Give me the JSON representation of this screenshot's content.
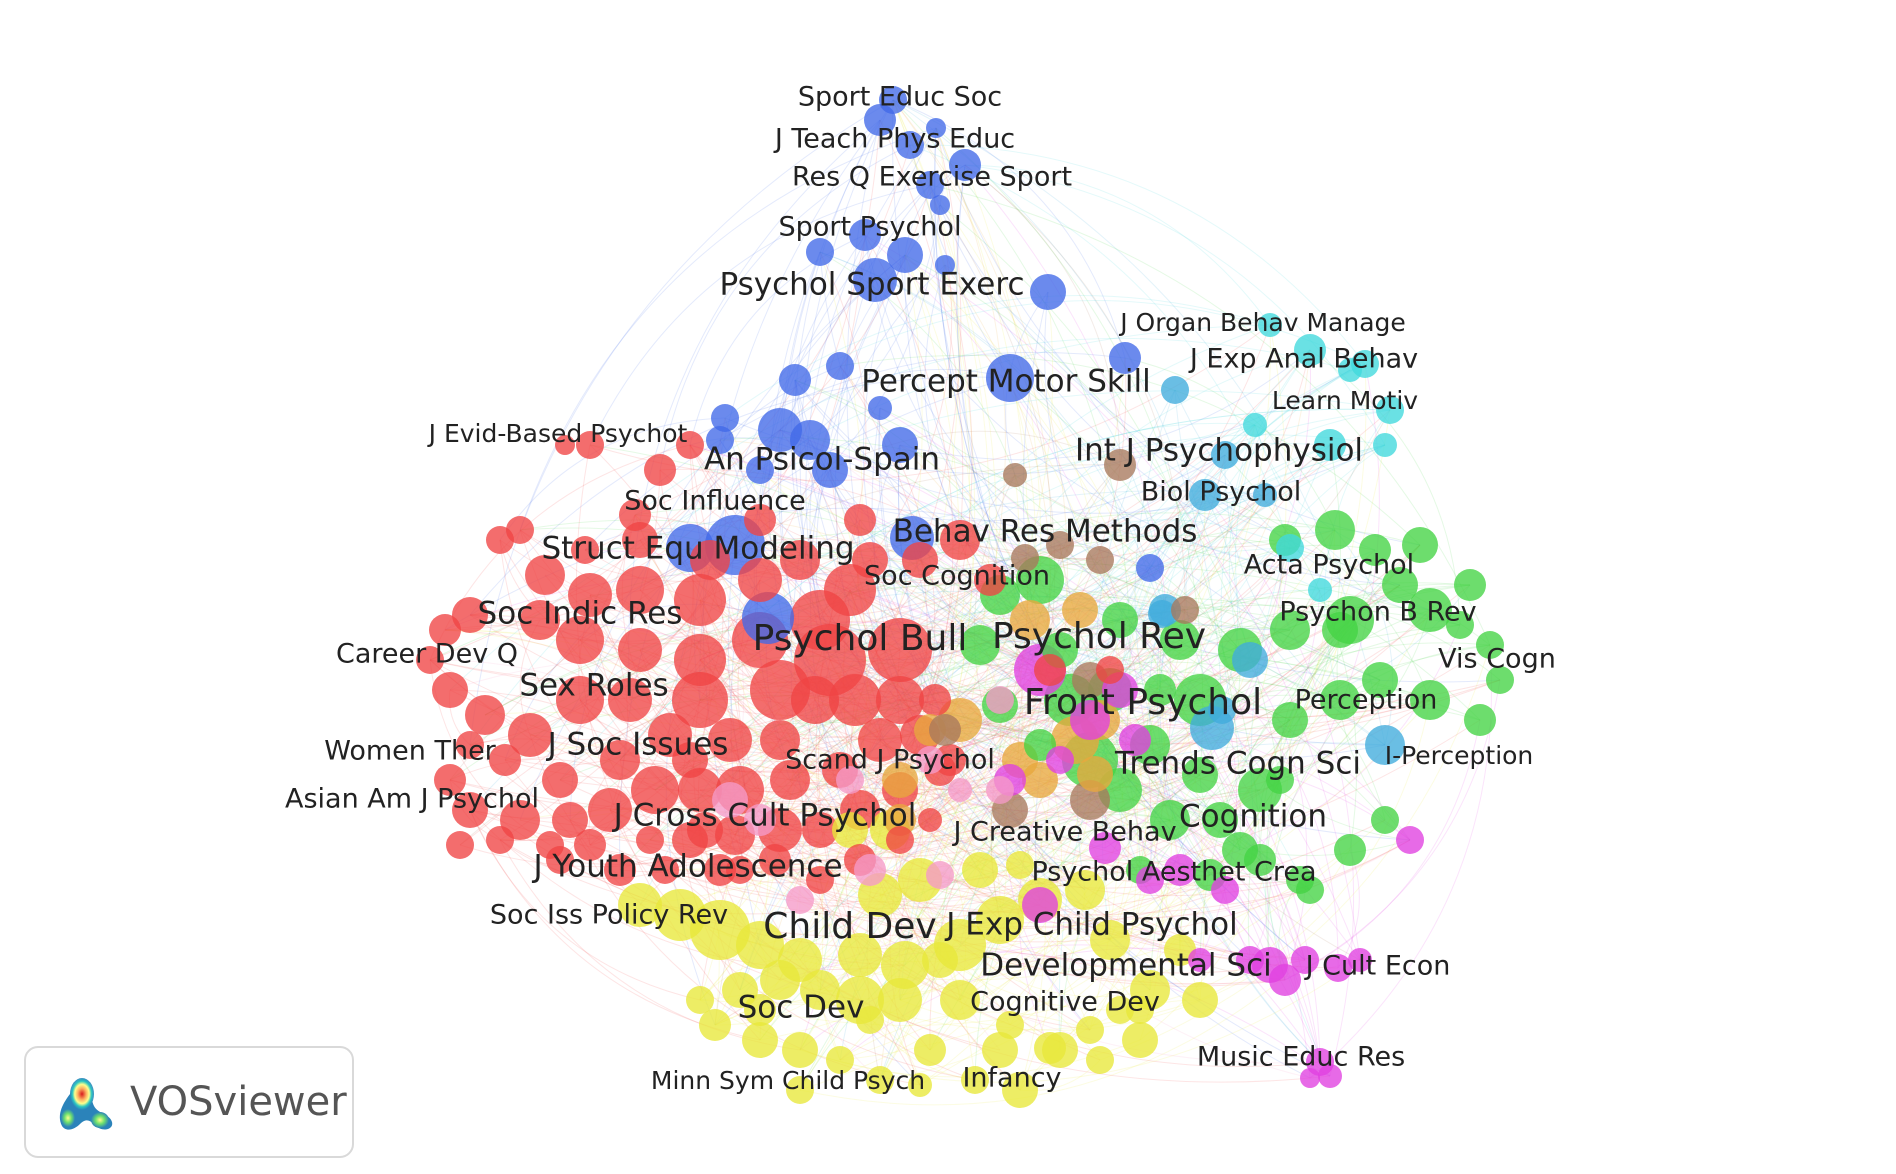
{
  "app": {
    "name": "VOSviewer"
  },
  "clusters": [
    {
      "id": 1,
      "color": "#ef3b3b"
    },
    {
      "id": 2,
      "color": "#3a9a1a"
    },
    {
      "id": 3,
      "color": "#3b5ee8"
    },
    {
      "id": 4,
      "color": "#e7e72a"
    },
    {
      "id": 5,
      "color": "#e03ce0"
    },
    {
      "id": 6,
      "color": "#3ad6dc"
    },
    {
      "id": 7,
      "color": "#f58cc0"
    },
    {
      "id": 8,
      "color": "#e9a23a"
    },
    {
      "id": 9,
      "color": "#b07858"
    },
    {
      "id": 10,
      "color": "#3ca9dd"
    },
    {
      "id": 11,
      "color": "#41d441"
    }
  ],
  "labels": [
    {
      "text": "Sport Educ Soc",
      "cluster": 3,
      "size": "sm"
    },
    {
      "text": "J Teach Phys Educ",
      "cluster": 3,
      "size": "sm"
    },
    {
      "text": "Res Q Exercise Sport",
      "cluster": 3,
      "size": "sm"
    },
    {
      "text": "Sport Psychol",
      "cluster": 3,
      "size": "sm"
    },
    {
      "text": "Psychol Sport Exerc",
      "cluster": 3,
      "size": "md"
    },
    {
      "text": "J Organ Behav Manage",
      "cluster": 6,
      "size": "xs"
    },
    {
      "text": "J Exp Anal Behav",
      "cluster": 6,
      "size": "sm"
    },
    {
      "text": "Learn Motiv",
      "cluster": 6,
      "size": "xs"
    },
    {
      "text": "Percept Motor Skill",
      "cluster": 3,
      "size": "md"
    },
    {
      "text": "J Evid-Based Psychot",
      "cluster": 1,
      "size": "xs"
    },
    {
      "text": "An Psicol-Spain",
      "cluster": 3,
      "size": "md"
    },
    {
      "text": "Int J Psychophysiol",
      "cluster": 10,
      "size": "md"
    },
    {
      "text": "Biol Psychol",
      "cluster": 10,
      "size": "sm"
    },
    {
      "text": "Soc Influence",
      "cluster": 1,
      "size": "sm"
    },
    {
      "text": "Behav Res Methods",
      "cluster": 11,
      "size": "md"
    },
    {
      "text": "Struct Equ Modeling",
      "cluster": 3,
      "size": "md"
    },
    {
      "text": "Acta Psychol",
      "cluster": 11,
      "size": "sm"
    },
    {
      "text": "Soc Cognition",
      "cluster": 8,
      "size": "sm"
    },
    {
      "text": "Soc Indic Res",
      "cluster": 1,
      "size": "md"
    },
    {
      "text": "Psychon B Rev",
      "cluster": 11,
      "size": "sm"
    },
    {
      "text": "Psychol Bull",
      "cluster": 1,
      "size": "lg"
    },
    {
      "text": "Psychol Rev",
      "cluster": 11,
      "size": "lg"
    },
    {
      "text": "Career Dev Q",
      "cluster": 1,
      "size": "sm"
    },
    {
      "text": "Vis Cogn",
      "cluster": 11,
      "size": "sm"
    },
    {
      "text": "Sex Roles",
      "cluster": 1,
      "size": "md"
    },
    {
      "text": "Front Psychol",
      "cluster": 11,
      "size": "lg"
    },
    {
      "text": "Perception",
      "cluster": 11,
      "size": "sm"
    },
    {
      "text": "Women Ther",
      "cluster": 1,
      "size": "sm"
    },
    {
      "text": "J Soc Issues",
      "cluster": 1,
      "size": "md"
    },
    {
      "text": "Scand J Psychol",
      "cluster": 8,
      "size": "sm"
    },
    {
      "text": "Trends Cogn Sci",
      "cluster": 11,
      "size": "md"
    },
    {
      "text": "I-Perception",
      "cluster": 11,
      "size": "xs"
    },
    {
      "text": "Asian Am J Psychol",
      "cluster": 1,
      "size": "sm"
    },
    {
      "text": "J Cross Cult Psychol",
      "cluster": 1,
      "size": "md"
    },
    {
      "text": "J Creative Behav",
      "cluster": 5,
      "size": "sm"
    },
    {
      "text": "Cognition",
      "cluster": 11,
      "size": "md"
    },
    {
      "text": "J Youth Adolescence",
      "cluster": 4,
      "size": "md"
    },
    {
      "text": "Psychol Aesthet Crea",
      "cluster": 5,
      "size": "sm"
    },
    {
      "text": "Soc Iss Policy Rev",
      "cluster": 1,
      "size": "sm"
    },
    {
      "text": "Child Dev",
      "cluster": 4,
      "size": "lg"
    },
    {
      "text": "J Exp Child Psychol",
      "cluster": 4,
      "size": "md"
    },
    {
      "text": "Developmental Sci",
      "cluster": 4,
      "size": "md"
    },
    {
      "text": "J Cult Econ",
      "cluster": 5,
      "size": "sm"
    },
    {
      "text": "Cognitive Dev",
      "cluster": 4,
      "size": "sm"
    },
    {
      "text": "Soc Dev",
      "cluster": 4,
      "size": "md"
    },
    {
      "text": "Music Educ Res",
      "cluster": 5,
      "size": "sm"
    },
    {
      "text": "Minn Sym Child Psych",
      "cluster": 4,
      "size": "xs"
    },
    {
      "text": "Infancy",
      "cluster": 4,
      "size": "sm"
    }
  ]
}
